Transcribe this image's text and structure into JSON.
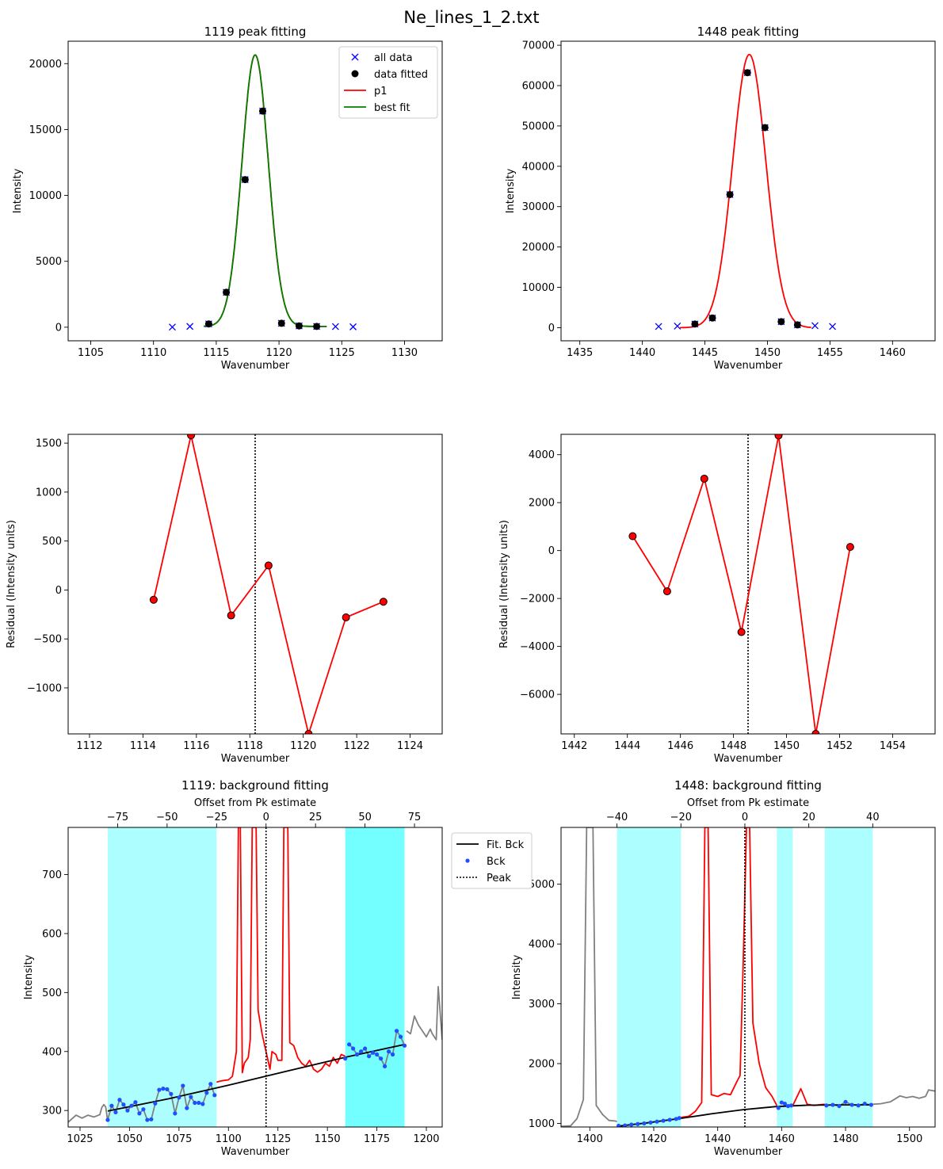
{
  "figure_title": "Ne_lines_1_2.txt",
  "colors": {
    "cyan": "#00ffff",
    "red": "#ff0000",
    "green": "#008000",
    "blue": "#0000ff",
    "gray": "#808080",
    "bck_blue": "#1f4fff"
  },
  "chart_data": [
    {
      "id": "p11",
      "type": "scatter",
      "title": "1119 peak fitting",
      "xlabel": "Wavenumber",
      "ylabel": "Intensity",
      "xlim": [
        1103.2,
        1133.0
      ],
      "ylim": [
        -1030,
        21700
      ],
      "xticks": [
        1105,
        1110,
        1115,
        1120,
        1125,
        1130
      ],
      "yticks": [
        0,
        5000,
        10000,
        15000,
        20000
      ],
      "legend": {
        "position": "top-right",
        "entries": [
          "all data",
          "data fitted",
          "p1",
          "best fit"
        ]
      },
      "all_data": {
        "name": "all data",
        "x": [
          1111.5,
          1112.9,
          1114.4,
          1115.8,
          1117.3,
          1118.7,
          1120.2,
          1121.6,
          1123.0,
          1124.5,
          1125.9
        ],
        "y": [
          10,
          60,
          250,
          2650,
          11200,
          16400,
          300,
          100,
          60,
          50,
          30
        ]
      },
      "fitted": {
        "name": "data fitted",
        "x": [
          1114.4,
          1115.8,
          1117.3,
          1118.7,
          1120.2,
          1121.6,
          1123.0
        ],
        "y": [
          250,
          2650,
          11200,
          16400,
          300,
          100,
          60
        ]
      },
      "p1": {
        "name": "p1",
        "center": 1118.1,
        "amplitude": 20600,
        "width": 1.05,
        "offset": 60,
        "xrange": [
          1114.0,
          1123.8
        ]
      },
      "best_fit": {
        "name": "best fit",
        "center": 1118.1,
        "amplitude": 20600,
        "width": 1.05,
        "offset": 60,
        "xrange": [
          1114.0,
          1123.8
        ]
      }
    },
    {
      "id": "p12",
      "type": "scatter",
      "title": "1448 peak fitting",
      "xlabel": "Wavenumber",
      "ylabel": "Intensity",
      "xlim": [
        1433.5,
        1463.4
      ],
      "ylim": [
        -3250,
        71000
      ],
      "xticks": [
        1435,
        1440,
        1445,
        1450,
        1455,
        1460
      ],
      "yticks": [
        0,
        10000,
        20000,
        30000,
        40000,
        50000,
        60000,
        70000
      ],
      "all_data": {
        "x": [
          1441.3,
          1442.8,
          1444.2,
          1445.6,
          1447.0,
          1448.4,
          1449.8,
          1451.1,
          1452.4,
          1453.8,
          1455.2
        ],
        "y": [
          300,
          400,
          900,
          2400,
          33000,
          63200,
          49600,
          1500,
          700,
          500,
          300
        ]
      },
      "fitted": {
        "x": [
          1444.2,
          1445.6,
          1447.0,
          1448.4,
          1449.8,
          1451.1,
          1452.4
        ],
        "y": [
          900,
          2400,
          33000,
          63200,
          49600,
          1500,
          700
        ]
      },
      "p1": {
        "center": 1448.55,
        "amplitude": 67700,
        "width": 1.33,
        "offset": 0,
        "xrange": [
          1443.0,
          1453.5
        ]
      }
    },
    {
      "id": "p21",
      "type": "line",
      "xlabel": "Wavenumber",
      "ylabel": "Residual (Intensity units)",
      "xlim": [
        1111.2,
        1125.2
      ],
      "ylim": [
        -1470,
        1590
      ],
      "xticks": [
        1112,
        1114,
        1116,
        1118,
        1120,
        1122,
        1124
      ],
      "yticks": [
        -1000,
        -500,
        0,
        500,
        1000,
        1500
      ],
      "peak_line": 1118.2,
      "x": [
        1114.4,
        1115.8,
        1117.3,
        1118.7,
        1120.2,
        1121.6,
        1123.0
      ],
      "y": [
        -100,
        1580,
        -260,
        250,
        -1470,
        -280,
        -120
      ]
    },
    {
      "id": "p22",
      "type": "line",
      "xlabel": "Wavenumber",
      "ylabel": "Residual (Intensity units)",
      "xlim": [
        1441.5,
        1455.6
      ],
      "ylim": [
        -7650,
        4850
      ],
      "xticks": [
        1442,
        1444,
        1446,
        1448,
        1450,
        1452,
        1454
      ],
      "yticks": [
        -6000,
        -4000,
        -2000,
        0,
        2000,
        4000
      ],
      "peak_line": 1448.55,
      "x": [
        1444.2,
        1445.5,
        1446.9,
        1448.3,
        1449.7,
        1451.1,
        1452.4
      ],
      "y": [
        600,
        -1700,
        3000,
        -3400,
        4800,
        -7650,
        150
      ]
    },
    {
      "id": "p31",
      "type": "line",
      "title": "1119: background fitting",
      "xlabel": "Wavenumber",
      "ylabel": "Intensity",
      "top_xlabel": "Offset from Pk estimate",
      "xlim": [
        1019,
        1208
      ],
      "ylim": [
        272,
        780
      ],
      "xticks": [
        1025,
        1050,
        1075,
        1100,
        1125,
        1150,
        1175,
        1200
      ],
      "yticks": [
        300,
        400,
        500,
        600,
        700
      ],
      "top_ticks": [
        -75,
        -50,
        -25,
        0,
        25,
        50,
        75
      ],
      "peak_center": 1119,
      "shaded": [
        [
          1039,
          1094
        ],
        [
          1159,
          1189
        ]
      ],
      "fit_bck": [
        [
          1039,
          299
        ],
        [
          1070,
          320
        ],
        [
          1100,
          343
        ],
        [
          1130,
          367
        ],
        [
          1160,
          391
        ],
        [
          1189,
          412
        ]
      ],
      "gray_line": [
        [
          1019,
          280
        ],
        [
          1023,
          292
        ],
        [
          1026,
          287
        ],
        [
          1029,
          292
        ],
        [
          1032,
          289
        ],
        [
          1035,
          293
        ],
        [
          1036,
          305
        ],
        [
          1037,
          310
        ],
        [
          1038,
          306
        ],
        [
          1039,
          282
        ],
        [
          1190,
          435
        ],
        [
          1192,
          430
        ],
        [
          1194,
          460
        ],
        [
          1196,
          445
        ],
        [
          1198,
          435
        ],
        [
          1200,
          425
        ],
        [
          1202,
          438
        ],
        [
          1203,
          430
        ],
        [
          1205,
          420
        ],
        [
          1206,
          510
        ],
        [
          1208,
          420
        ]
      ],
      "red_line": [
        [
          1094,
          348
        ],
        [
          1096,
          350
        ],
        [
          1098,
          351
        ],
        [
          1100,
          352
        ],
        [
          1102,
          358
        ],
        [
          1104,
          400
        ],
        [
          1105,
          780
        ],
        [
          1106,
          780
        ],
        [
          1107,
          364
        ],
        [
          1108,
          380
        ],
        [
          1110,
          390
        ],
        [
          1111,
          420
        ],
        [
          1112,
          780
        ],
        [
          1114,
          780
        ],
        [
          1115,
          470
        ],
        [
          1117,
          430
        ],
        [
          1119,
          400
        ],
        [
          1121,
          370
        ],
        [
          1122,
          400
        ],
        [
          1124,
          395
        ],
        [
          1125,
          385
        ],
        [
          1127,
          385
        ],
        [
          1128,
          780
        ],
        [
          1130,
          780
        ],
        [
          1131,
          415
        ],
        [
          1133,
          410
        ],
        [
          1135,
          390
        ],
        [
          1137,
          380
        ],
        [
          1139,
          375
        ],
        [
          1141,
          385
        ],
        [
          1143,
          370
        ],
        [
          1145,
          365
        ],
        [
          1147,
          370
        ],
        [
          1149,
          380
        ],
        [
          1151,
          375
        ],
        [
          1153,
          390
        ],
        [
          1155,
          380
        ],
        [
          1157,
          395
        ],
        [
          1159,
          392
        ]
      ],
      "bck_points": [
        [
          1039,
          284
        ],
        [
          1041,
          308
        ],
        [
          1043,
          297
        ],
        [
          1045,
          318
        ],
        [
          1047,
          310
        ],
        [
          1049,
          300
        ],
        [
          1051,
          308
        ],
        [
          1053,
          314
        ],
        [
          1055,
          295
        ],
        [
          1057,
          302
        ],
        [
          1059,
          284
        ],
        [
          1061,
          285
        ],
        [
          1063,
          312
        ],
        [
          1065,
          335
        ],
        [
          1067,
          337
        ],
        [
          1069,
          336
        ],
        [
          1071,
          328
        ],
        [
          1073,
          295
        ],
        [
          1075,
          322
        ],
        [
          1077,
          342
        ],
        [
          1079,
          304
        ],
        [
          1081,
          323
        ],
        [
          1083,
          313
        ],
        [
          1085,
          313
        ],
        [
          1087,
          311
        ],
        [
          1089,
          330
        ],
        [
          1091,
          345
        ],
        [
          1093,
          326
        ],
        [
          1159,
          388
        ],
        [
          1161,
          412
        ],
        [
          1163,
          405
        ],
        [
          1165,
          395
        ],
        [
          1167,
          400
        ],
        [
          1169,
          405
        ],
        [
          1171,
          392
        ],
        [
          1173,
          398
        ],
        [
          1175,
          395
        ],
        [
          1177,
          388
        ],
        [
          1179,
          375
        ],
        [
          1181,
          400
        ],
        [
          1183,
          395
        ],
        [
          1185,
          435
        ],
        [
          1187,
          425
        ],
        [
          1189,
          410
        ]
      ],
      "legend": {
        "position": "outside right",
        "entries": [
          "Fit. Bck",
          "Bck",
          "Peak"
        ]
      }
    },
    {
      "id": "p32",
      "type": "line",
      "title": "1448: background fitting",
      "xlabel": "Wavenumber",
      "ylabel": "Intensity",
      "top_xlabel": "Offset from Pk estimate",
      "xlim": [
        1391,
        1508
      ],
      "ylim": [
        940,
        5950
      ],
      "xticks": [
        1400,
        1420,
        1440,
        1460,
        1480,
        1500
      ],
      "yticks": [
        1000,
        2000,
        3000,
        4000,
        5000
      ],
      "top_ticks": [
        -40,
        -20,
        0,
        20,
        40
      ],
      "peak_center": 1448.5,
      "shaded": [
        [
          1408.5,
          1428.5
        ],
        [
          1458.5,
          1463.5
        ],
        [
          1473.5,
          1488.5
        ]
      ],
      "fit_bck": [
        [
          1408.5,
          950
        ],
        [
          1418,
          1010
        ],
        [
          1428,
          1080
        ],
        [
          1438,
          1160
        ],
        [
          1448,
          1230
        ],
        [
          1458,
          1280
        ],
        [
          1468,
          1305
        ],
        [
          1478,
          1310
        ],
        [
          1488.5,
          1310
        ]
      ],
      "gray_line": [
        [
          1391,
          950
        ],
        [
          1394,
          960
        ],
        [
          1396,
          1080
        ],
        [
          1398,
          1400
        ],
        [
          1399,
          5950
        ],
        [
          1401,
          5950
        ],
        [
          1402,
          1300
        ],
        [
          1404,
          1150
        ],
        [
          1406,
          1050
        ],
        [
          1408,
          1040
        ],
        [
          1408.5,
          1030
        ],
        [
          1488.5,
          1320
        ],
        [
          1491,
          1330
        ],
        [
          1494,
          1360
        ],
        [
          1497,
          1460
        ],
        [
          1499,
          1430
        ],
        [
          1501,
          1450
        ],
        [
          1503,
          1420
        ],
        [
          1505,
          1450
        ],
        [
          1506,
          1560
        ],
        [
          1508,
          1540
        ]
      ],
      "red_line_1": [
        [
          1428.5,
          1100
        ],
        [
          1431,
          1120
        ],
        [
          1433,
          1200
        ],
        [
          1435,
          1350
        ],
        [
          1436,
          5950
        ],
        [
          1437,
          5950
        ],
        [
          1438,
          1480
        ],
        [
          1440,
          1450
        ],
        [
          1442,
          1500
        ],
        [
          1444,
          1480
        ],
        [
          1446,
          1700
        ],
        [
          1447,
          1800
        ],
        [
          1448,
          3700
        ],
        [
          1449,
          5950
        ],
        [
          1450,
          5950
        ],
        [
          1451,
          2680
        ],
        [
          1453,
          2000
        ],
        [
          1455,
          1600
        ],
        [
          1457,
          1450
        ],
        [
          1458.5,
          1300
        ]
      ],
      "red_line_2": [
        [
          1463.5,
          1300
        ],
        [
          1466,
          1580
        ],
        [
          1468,
          1320
        ],
        [
          1470,
          1300
        ],
        [
          1473.5,
          1320
        ]
      ],
      "bck_points": [
        [
          1409,
          960
        ],
        [
          1411,
          965
        ],
        [
          1413,
          980
        ],
        [
          1415,
          990
        ],
        [
          1417,
          1000
        ],
        [
          1419,
          1015
        ],
        [
          1421,
          1030
        ],
        [
          1423,
          1045
        ],
        [
          1425,
          1060
        ],
        [
          1427,
          1075
        ],
        [
          1428,
          1090
        ],
        [
          1459,
          1260
        ],
        [
          1460,
          1350
        ],
        [
          1461,
          1330
        ],
        [
          1462,
          1290
        ],
        [
          1463,
          1300
        ],
        [
          1474,
          1300
        ],
        [
          1476,
          1310
        ],
        [
          1478,
          1290
        ],
        [
          1480,
          1360
        ],
        [
          1482,
          1310
        ],
        [
          1484,
          1300
        ],
        [
          1486,
          1330
        ],
        [
          1488,
          1310
        ]
      ]
    }
  ]
}
